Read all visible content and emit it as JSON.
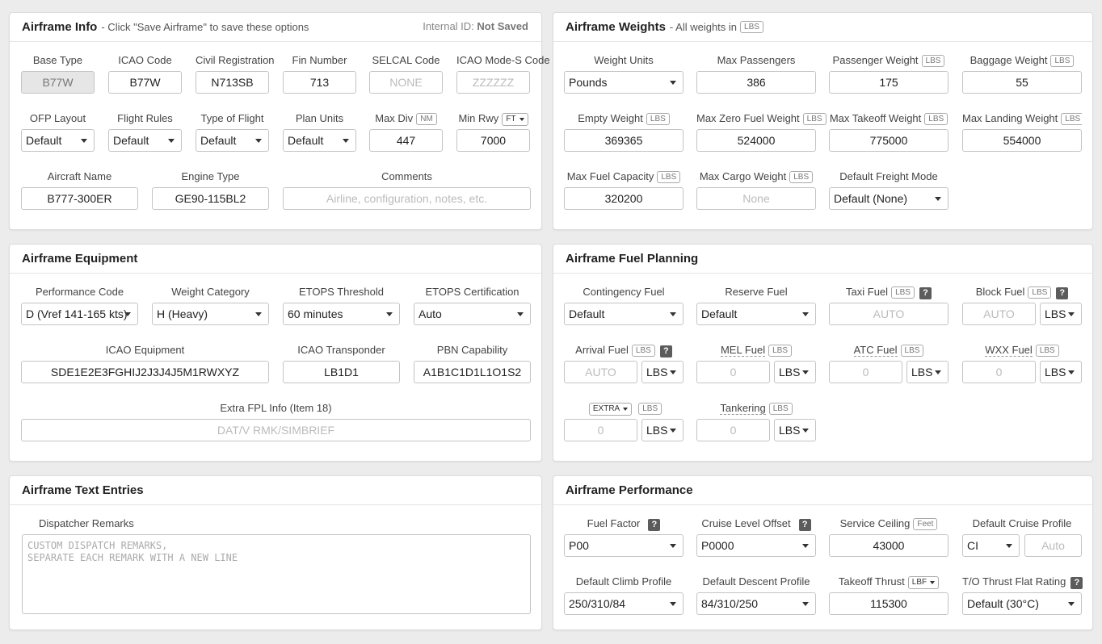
{
  "info": {
    "title": "Airframe Info",
    "subtitle": "- Click \"Save Airframe\" to save these options",
    "internal_id_label": "Internal ID:",
    "internal_id_value": "Not Saved",
    "base_type": {
      "label": "Base Type",
      "value": "B77W"
    },
    "icao_code": {
      "label": "ICAO Code",
      "value": "B77W"
    },
    "civil_reg": {
      "label": "Civil Registration",
      "value": "N713SB"
    },
    "fin_number": {
      "label": "Fin Number",
      "value": "713"
    },
    "selcal": {
      "label": "SELCAL Code",
      "placeholder": "NONE"
    },
    "modes": {
      "label": "ICAO Mode-S Code",
      "placeholder": "ZZZZZZ"
    },
    "ofp_layout": {
      "label": "OFP Layout",
      "value": "Default"
    },
    "flight_rules": {
      "label": "Flight Rules",
      "value": "Default"
    },
    "type_of_flight": {
      "label": "Type of Flight",
      "value": "Default"
    },
    "plan_units": {
      "label": "Plan Units",
      "value": "Default"
    },
    "max_div": {
      "label": "Max Div",
      "unit": "NM",
      "value": "447"
    },
    "min_rwy": {
      "label": "Min Rwy",
      "unit": "FT",
      "value": "7000"
    },
    "aircraft_name": {
      "label": "Aircraft Name",
      "value": "B777-300ER"
    },
    "engine_type": {
      "label": "Engine Type",
      "value": "GE90-115BL2"
    },
    "comments": {
      "label": "Comments",
      "placeholder": "Airline, configuration, notes, etc."
    }
  },
  "weights": {
    "title": "Airframe Weights",
    "subtitle": "- All weights in",
    "subtitle_unit": "LBS",
    "weight_units": {
      "label": "Weight Units",
      "value": "Pounds"
    },
    "max_pax": {
      "label": "Max Passengers",
      "value": "386"
    },
    "pax_weight": {
      "label": "Passenger Weight",
      "unit": "LBS",
      "value": "175"
    },
    "bag_weight": {
      "label": "Baggage Weight",
      "unit": "LBS",
      "value": "55"
    },
    "empty_weight": {
      "label": "Empty Weight",
      "unit": "LBS",
      "value": "369365"
    },
    "mzfw": {
      "label": "Max Zero Fuel Weight",
      "unit": "LBS",
      "value": "524000"
    },
    "mtow": {
      "label": "Max Takeoff Weight",
      "unit": "LBS",
      "value": "775000"
    },
    "mlw": {
      "label": "Max Landing Weight",
      "unit": "LBS",
      "value": "554000"
    },
    "max_fuel": {
      "label": "Max Fuel Capacity",
      "unit": "LBS",
      "value": "320200"
    },
    "max_cargo": {
      "label": "Max Cargo Weight",
      "unit": "LBS",
      "placeholder": "None"
    },
    "freight_mode": {
      "label": "Default Freight Mode",
      "value": "Default (None)"
    }
  },
  "equipment": {
    "title": "Airframe Equipment",
    "perf_code": {
      "label": "Performance Code",
      "value": "D (Vref 141-165 kts)"
    },
    "weight_cat": {
      "label": "Weight Category",
      "value": "H (Heavy)"
    },
    "etops_threshold": {
      "label": "ETOPS Threshold",
      "value": "60 minutes"
    },
    "etops_cert": {
      "label": "ETOPS Certification",
      "value": "Auto"
    },
    "icao_equip": {
      "label": "ICAO Equipment",
      "value": "SDE1E2E3FGHIJ2J3J4J5M1RWXYZ"
    },
    "icao_transponder": {
      "label": "ICAO Transponder",
      "value": "LB1D1"
    },
    "pbn": {
      "label": "PBN Capability",
      "value": "A1B1C1D1L1O1S2"
    },
    "extra_fpl": {
      "label": "Extra FPL Info (Item 18)",
      "placeholder": "DAT/V RMK/SIMBRIEF"
    }
  },
  "fuel": {
    "title": "Airframe Fuel Planning",
    "contingency": {
      "label": "Contingency Fuel",
      "value": "Default"
    },
    "reserve": {
      "label": "Reserve Fuel",
      "value": "Default"
    },
    "taxi": {
      "label": "Taxi Fuel",
      "unit": "LBS",
      "help": "?",
      "placeholder": "AUTO"
    },
    "block": {
      "label": "Block Fuel",
      "unit": "LBS",
      "help": "?",
      "placeholder": "AUTO",
      "unit_select": "LBS"
    },
    "arrival": {
      "label": "Arrival Fuel",
      "unit": "LBS",
      "help": "?",
      "placeholder": "AUTO",
      "unit_select": "LBS"
    },
    "mel": {
      "label": "MEL Fuel",
      "unit": "LBS",
      "placeholder": "0",
      "unit_select": "LBS"
    },
    "atc": {
      "label": "ATC Fuel",
      "unit": "LBS",
      "placeholder": "0",
      "unit_select": "LBS"
    },
    "wxx": {
      "label": "WXX Fuel",
      "unit": "LBS",
      "placeholder": "0",
      "unit_select": "LBS"
    },
    "extra": {
      "select": "EXTRA",
      "unit": "LBS",
      "placeholder": "0",
      "unit_select": "LBS"
    },
    "tankering": {
      "label": "Tankering",
      "unit": "LBS",
      "placeholder": "0",
      "unit_select": "LBS"
    }
  },
  "text": {
    "title": "Airframe Text Entries",
    "remarks_label": "Dispatcher Remarks",
    "remarks_placeholder": "CUSTOM DISPATCH REMARKS,\nSEPARATE EACH REMARK WITH A NEW LINE"
  },
  "perf": {
    "title": "Airframe Performance",
    "fuel_factor": {
      "label": "Fuel Factor",
      "help": "?",
      "value": "P00"
    },
    "cruise_offset": {
      "label": "Cruise Level Offset",
      "help": "?",
      "value": "P0000"
    },
    "ceiling": {
      "label": "Service Ceiling",
      "unit": "Feet",
      "value": "43000"
    },
    "cruise_profile": {
      "label": "Default Cruise Profile",
      "value": "CI",
      "placeholder": "Auto"
    },
    "climb_profile": {
      "label": "Default Climb Profile",
      "value": "250/310/84"
    },
    "descent_profile": {
      "label": "Default Descent Profile",
      "value": "84/310/250"
    },
    "takeoff_thrust": {
      "label": "Takeoff Thrust",
      "unit": "LBF",
      "value": "115300"
    },
    "flat_rating": {
      "label": "T/O Thrust Flat Rating",
      "help": "?",
      "value": "Default (30°C)"
    }
  }
}
